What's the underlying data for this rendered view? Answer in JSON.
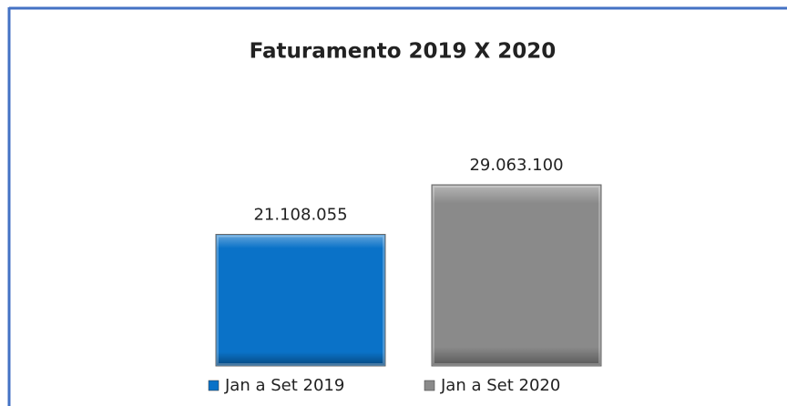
{
  "chart_data": {
    "type": "bar",
    "title": "Faturamento 2019 X 2020",
    "series": [
      {
        "name": "Jan a Set 2019",
        "color": "#0a72c8",
        "values": [
          21108055
        ],
        "value_labels": [
          "21.108.055"
        ]
      },
      {
        "name": "Jan a Set 2020",
        "color": "#8a8a8a",
        "values": [
          29063100
        ],
        "value_labels": [
          "29.063.100"
        ]
      }
    ],
    "legend": "bottom"
  }
}
